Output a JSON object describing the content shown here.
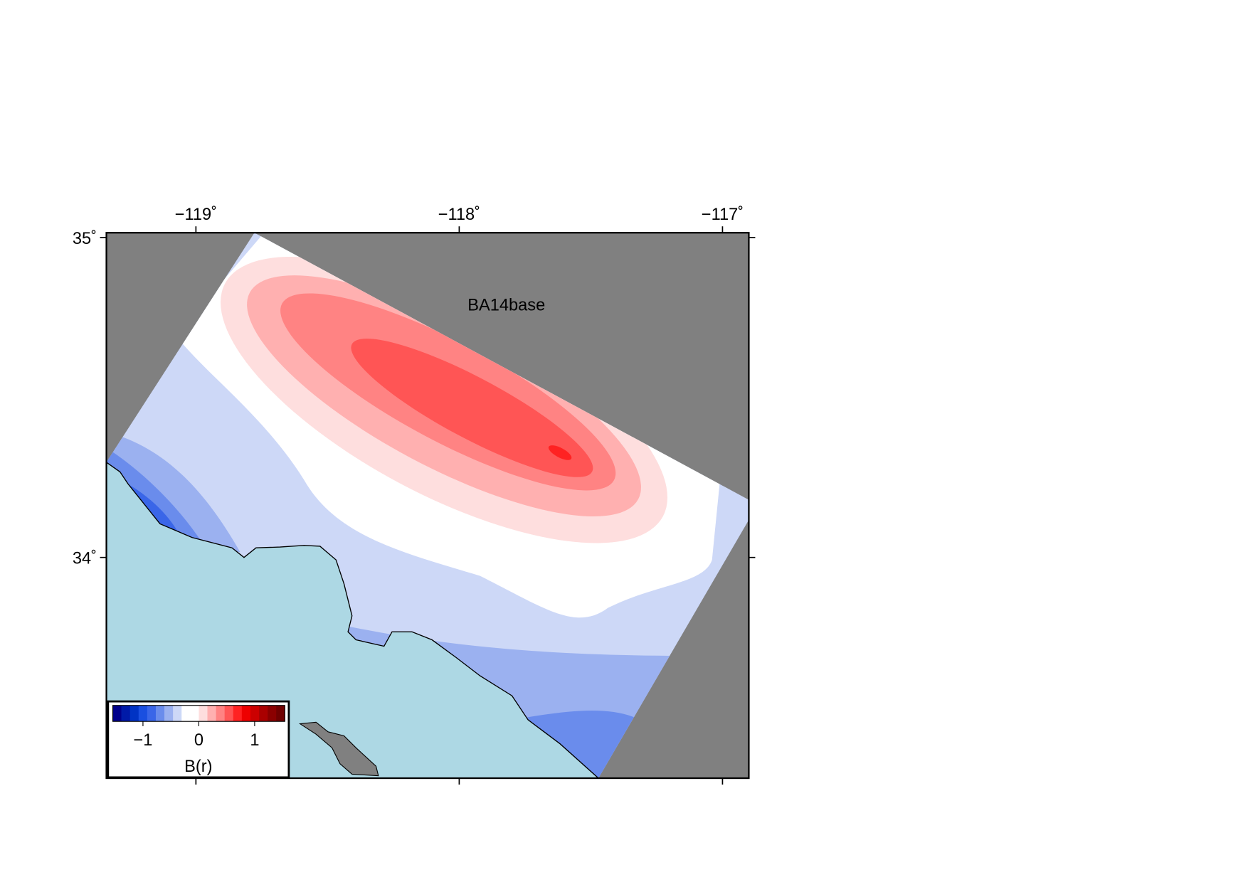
{
  "chart_data": {
    "type": "map",
    "title": "BA14base",
    "xlim": [
      -119.34,
      -116.9
    ],
    "ylim": [
      33.31,
      35.015
    ],
    "xticks": [
      {
        "value": -119,
        "label": "−119˚"
      },
      {
        "value": -118,
        "label": "−118˚"
      },
      {
        "value": -117,
        "label": "−117˚"
      }
    ],
    "yticks": [
      {
        "value": 35,
        "label": "35˚"
      },
      {
        "value": 34,
        "label": "34˚"
      }
    ],
    "colorbar": {
      "label": "B(r)",
      "clim": [
        -1.54,
        1.54
      ],
      "ticks": [
        {
          "value": -1,
          "label": "−1"
        },
        0,
        1
      ],
      "colors": [
        "#00008b",
        "#001aa8",
        "#0033c4",
        "#1a4fe0",
        "#3a66e8",
        "#6a8cec",
        "#9bb1f0",
        "#cdd8f7",
        "#ffffff",
        "#ffffff",
        "#fedede",
        "#ffb0b0",
        "#ff8383",
        "#ff5555",
        "#ff2222",
        "#ee0000",
        "#cc0000",
        "#aa0000",
        "#8b0000",
        "#700000"
      ]
    }
  }
}
